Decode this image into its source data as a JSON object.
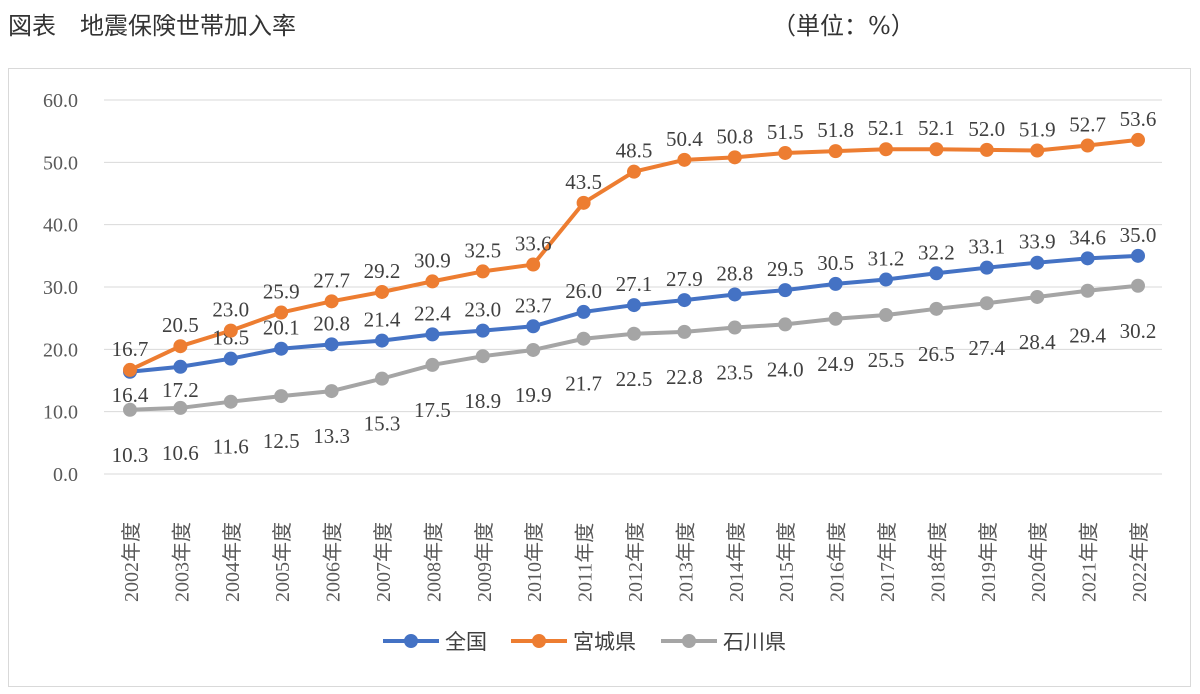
{
  "header": {
    "title": "図表　地震保険世帯加入率",
    "unit": "（単位：%）"
  },
  "chart_data": {
    "type": "line",
    "title": "地震保険世帯加入率",
    "xlabel": "",
    "ylabel": "",
    "ylim": [
      0,
      60
    ],
    "yticks": [
      "0.0",
      "10.0",
      "20.0",
      "30.0",
      "40.0",
      "50.0",
      "60.0"
    ],
    "grid": true,
    "legend": "bottom",
    "categories": [
      "2002年度",
      "2003年度",
      "2004年度",
      "2005年度",
      "2006年度",
      "2007年度",
      "2008年度",
      "2009年度",
      "2010年度",
      "2011年度",
      "2012年度",
      "2013年度",
      "2014年度",
      "2015年度",
      "2016年度",
      "2017年度",
      "2018年度",
      "2019年度",
      "2020年度",
      "2021年度",
      "2022年度"
    ],
    "series": [
      {
        "name": "全国",
        "color": "#4472c4",
        "label_pos": "above",
        "values": [
          16.4,
          17.2,
          18.5,
          20.1,
          20.8,
          21.4,
          22.4,
          23.0,
          23.7,
          26.0,
          27.1,
          27.9,
          28.8,
          29.5,
          30.5,
          31.2,
          32.2,
          33.1,
          33.9,
          34.6,
          35.0
        ]
      },
      {
        "name": "宮城県",
        "color": "#ed7d31",
        "label_pos": "above",
        "values": [
          16.7,
          20.5,
          23.0,
          25.9,
          27.7,
          29.2,
          30.9,
          32.5,
          33.6,
          43.5,
          48.5,
          50.4,
          50.8,
          51.5,
          51.8,
          52.1,
          52.1,
          52.0,
          51.9,
          52.7,
          53.6
        ]
      },
      {
        "name": "石川県",
        "color": "#a5a5a5",
        "label_pos": "below",
        "values": [
          10.3,
          10.6,
          11.6,
          12.5,
          13.3,
          15.3,
          17.5,
          18.9,
          19.9,
          21.7,
          22.5,
          22.8,
          23.5,
          24.0,
          24.9,
          25.5,
          26.5,
          27.4,
          28.4,
          29.4,
          30.2
        ]
      }
    ]
  }
}
